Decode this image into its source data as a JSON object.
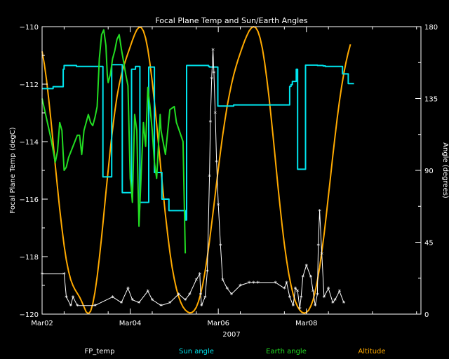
{
  "colors": {
    "background": "#000000",
    "axes": "#ffffff",
    "fp_temp": "#ffffff",
    "sun_angle": "#00e5ee",
    "earth_angle": "#22dd22",
    "altitude": "#ffaa00"
  },
  "chart_data": {
    "type": "line",
    "title": "Focal Plane Temp and Sun/Earth Angles",
    "xlabel": "2007",
    "ylabel_left": "Focal Plane Temp (degC)",
    "ylabel_right": "Angle (degrees)",
    "x_unit": "days after Mar02 2007 00:00",
    "xlim": [
      0,
      8.6
    ],
    "ylim_left": [
      -120,
      -110
    ],
    "ylim_right": [
      0,
      180
    ],
    "x_ticks": [
      {
        "value": 0,
        "label": "Mar02"
      },
      {
        "value": 2,
        "label": "Mar04"
      },
      {
        "value": 4,
        "label": "Mar06"
      },
      {
        "value": 6,
        "label": "Mar08"
      }
    ],
    "y_ticks_left": [
      {
        "value": -110,
        "label": "−110"
      },
      {
        "value": -112,
        "label": "−112"
      },
      {
        "value": -114,
        "label": "−114"
      },
      {
        "value": -116,
        "label": "−116"
      },
      {
        "value": -118,
        "label": "−118"
      },
      {
        "value": -120,
        "label": "−120"
      }
    ],
    "y_ticks_right": [
      {
        "value": 0,
        "label": "0"
      },
      {
        "value": 45,
        "label": "45"
      },
      {
        "value": 90,
        "label": "90"
      },
      {
        "value": 135,
        "label": "135"
      },
      {
        "value": 180,
        "label": "180"
      }
    ],
    "series": [
      {
        "name": "FP_temp",
        "axis": "left",
        "color": "#ffffff",
        "marker": "asterisk",
        "x": [
          0,
          0.5,
          0.55,
          0.65,
          0.7,
          0.8,
          1.2,
          1.6,
          1.8,
          1.95,
          2.05,
          2.2,
          2.4,
          2.5,
          2.7,
          2.9,
          3.1,
          3.25,
          3.35,
          3.5,
          3.58,
          3.6,
          3.62,
          3.7,
          3.75,
          3.8,
          3.82,
          3.85,
          3.88,
          3.9,
          3.93,
          3.96,
          4.0,
          4.05,
          4.1,
          4.2,
          4.3,
          4.5,
          4.7,
          4.8,
          4.9,
          5.3,
          5.5,
          5.55,
          5.62,
          5.7,
          5.75,
          5.8,
          5.85,
          5.88,
          5.92,
          6.0,
          6.1,
          6.15,
          6.2,
          6.25,
          6.27,
          6.3,
          6.35,
          6.4,
          6.5,
          6.6,
          6.65,
          6.75,
          6.85
        ],
        "y": [
          -118.6,
          -118.6,
          -119.4,
          -119.7,
          -119.4,
          -119.7,
          -119.7,
          -119.4,
          -119.6,
          -119.1,
          -119.5,
          -119.6,
          -119.2,
          -119.5,
          -119.7,
          -119.6,
          -119.3,
          -119.5,
          -119.3,
          -118.8,
          -118.6,
          -119.3,
          -119.7,
          -119.4,
          -118.5,
          -115.2,
          -113.3,
          -111.8,
          -110.8,
          -111.6,
          -113.0,
          -114.7,
          -116.2,
          -117.6,
          -118.8,
          -119.1,
          -119.3,
          -119.0,
          -118.9,
          -118.9,
          -118.9,
          -118.9,
          -119.1,
          -118.9,
          -119.4,
          -119.7,
          -119.1,
          -119.2,
          -119.8,
          -119.4,
          -118.7,
          -118.3,
          -118.7,
          -119.2,
          -119.7,
          -119.3,
          -117.6,
          -116.4,
          -117.9,
          -119.4,
          -119.1,
          -119.6,
          -119.5,
          -119.2,
          -119.6
        ]
      },
      {
        "name": "Sun angle",
        "axis": "right",
        "color": "#00e5ee",
        "x": [
          0,
          0.25,
          0.25,
          0.48,
          0.48,
          0.5,
          0.5,
          0.78,
          0.78,
          1.38,
          1.38,
          1.58,
          1.58,
          1.82,
          1.82,
          2.03,
          2.03,
          2.12,
          2.12,
          2.22,
          2.22,
          2.42,
          2.42,
          2.55,
          2.55,
          2.72,
          2.72,
          2.88,
          2.88,
          3.25,
          3.25,
          3.28,
          3.28,
          3.78,
          3.78,
          3.8,
          3.8,
          3.99,
          3.99,
          4.35,
          4.35,
          5.62,
          5.62,
          5.65,
          5.65,
          5.68,
          5.68,
          5.77,
          5.77,
          5.8,
          5.8,
          5.98,
          5.98,
          6.25,
          6.25,
          6.38,
          6.38,
          6.43,
          6.43,
          6.82,
          6.82,
          6.95,
          6.95,
          7.08
        ],
        "y": [
          141.2,
          141.2,
          142.4,
          142.4,
          153.3,
          153.3,
          155.7,
          155.7,
          155.1,
          155.1,
          85.9,
          85.9,
          156.2,
          156.2,
          76.1,
          76.1,
          153.3,
          153.3,
          155.1,
          155.1,
          70.0,
          70.0,
          154.7,
          154.7,
          88.7,
          88.7,
          72.0,
          72.0,
          64.8,
          64.8,
          58.9,
          58.9,
          155.7,
          155.7,
          155.1,
          155.1,
          154.7,
          154.7,
          130.3,
          130.3,
          131.0,
          131.0,
          142.6,
          142.6,
          143.7,
          143.7,
          145.7,
          145.7,
          153.3,
          153.3,
          90.7,
          90.7,
          155.9,
          155.9,
          155.7,
          155.7,
          155.4,
          155.4,
          155.1,
          155.1,
          150.4,
          150.4,
          144.3,
          144.3
        ]
      },
      {
        "name": "Earth angle",
        "axis": "right",
        "color": "#22dd22",
        "x": [
          0,
          0.2,
          0.3,
          0.35,
          0.4,
          0.45,
          0.48,
          0.5,
          0.55,
          0.6,
          0.7,
          0.8,
          0.85,
          0.9,
          0.95,
          1.0,
          1.05,
          1.1,
          1.15,
          1.2,
          1.25,
          1.3,
          1.35,
          1.4,
          1.45,
          1.48,
          1.5,
          1.55,
          1.6,
          1.65,
          1.7,
          1.75,
          1.8,
          1.85,
          1.9,
          1.95,
          2.0,
          2.02,
          2.05,
          2.1,
          2.15,
          2.2,
          2.3,
          2.35,
          2.4,
          2.45,
          2.5,
          2.55,
          2.6,
          2.65,
          2.68,
          2.7,
          2.8,
          2.9,
          3.0,
          3.05,
          3.1,
          3.2,
          3.25
        ],
        "y": [
          135,
          110,
          95,
          102,
          120,
          115,
          100,
          90,
          92,
          98,
          105,
          112,
          112,
          100,
          115,
          120,
          125,
          120,
          118,
          123,
          130,
          160,
          175,
          178,
          168,
          150,
          145,
          150,
          160,
          165,
          172,
          175,
          166,
          158,
          150,
          143,
          85,
          80,
          70,
          125,
          115,
          55,
          120,
          105,
          142,
          130,
          115,
          95,
          85,
          110,
          125,
          115,
          100,
          128,
          130,
          120,
          116,
          108,
          38
        ]
      },
      {
        "name": "Altitude",
        "axis": "right",
        "color": "#ffaa00",
        "x": [
          0,
          0.05,
          0.1,
          0.15,
          0.2,
          0.25,
          0.3,
          0.35,
          0.4,
          0.45,
          0.5,
          0.55,
          0.6,
          0.65,
          0.7,
          0.75,
          0.8,
          0.85,
          0.9,
          0.95,
          1.0,
          1.05,
          1.1,
          1.15,
          1.2,
          1.25,
          1.3,
          1.35,
          1.4,
          1.45,
          1.5,
          1.55,
          1.6,
          1.65,
          1.7,
          1.75,
          1.8,
          1.85,
          1.9,
          1.95,
          2.0,
          2.05,
          2.1,
          2.15,
          2.2,
          2.25,
          2.3,
          2.35,
          2.4,
          2.45,
          2.5,
          2.55,
          2.6,
          2.65,
          2.7,
          2.75,
          2.8,
          2.85,
          2.9,
          2.95,
          3.0,
          3.05,
          3.1,
          3.15,
          3.2,
          3.25,
          3.3,
          3.35,
          3.4,
          3.45,
          3.5,
          3.55,
          3.6,
          3.65,
          3.7,
          3.75,
          3.8,
          3.85,
          3.9,
          3.95,
          4.0,
          4.05,
          4.1,
          4.15,
          4.2,
          4.25,
          4.3,
          4.35,
          4.4,
          4.45,
          4.5,
          4.55,
          4.6,
          4.65,
          4.7,
          4.75,
          4.8,
          4.85,
          4.9,
          4.95,
          5.0,
          5.05,
          5.1,
          5.15,
          5.2,
          5.25,
          5.3,
          5.35,
          5.4,
          5.45,
          5.5,
          5.55,
          5.6,
          5.65,
          5.7,
          5.75,
          5.8,
          5.85,
          5.9,
          5.95,
          6.0,
          6.05,
          6.1,
          6.15,
          6.2,
          6.25,
          6.3,
          6.35,
          6.4,
          6.45,
          6.5,
          6.55,
          6.6,
          6.65,
          6.7,
          6.75,
          6.8,
          6.85,
          6.9,
          6.95,
          7.0
        ],
        "y": [
          164.5,
          156.8,
          146.7,
          134.8,
          121.5,
          107.4,
          93.1,
          79.1,
          65.8,
          53.7,
          43.0,
          34.0,
          26.9,
          21.6,
          17.9,
          15.2,
          13.0,
          10.7,
          7.9,
          4.6,
          1.4,
          0.2,
          1.8,
          6.3,
          13.6,
          23.4,
          35.0,
          48.1,
          62.0,
          76.2,
          90.1,
          103.5,
          115.8,
          126.6,
          136.0,
          143.7,
          149.9,
          155.0,
          159.3,
          163.4,
          167.4,
          171.4,
          175.1,
          178.0,
          179.6,
          179.5,
          177.3,
          172.8,
          165.9,
          156.7,
          145.6,
          132.8,
          118.9,
          104.4,
          89.8,
          75.6,
          62.2,
          49.9,
          39.0,
          29.7,
          22.0,
          15.8,
          10.9,
          7.2,
          4.5,
          2.6,
          1.4,
          0.8,
          1.0,
          2.1,
          4.3,
          7.8,
          12.6,
          19.0,
          26.7,
          35.7,
          45.7,
          56.6,
          68.0,
          79.5,
          90.9,
          101.8,
          112.0,
          121.4,
          129.9,
          137.4,
          144.0,
          149.8,
          154.9,
          159.4,
          163.6,
          167.5,
          171.2,
          174.5,
          177.3,
          179.2,
          180.0,
          179.4,
          177.0,
          172.7,
          166.3,
          157.9,
          147.7,
          136.0,
          123.1,
          109.4,
          95.3,
          81.3,
          67.8,
          55.2,
          43.8,
          33.8,
          25.2,
          18.1,
          12.4,
          8.0,
          4.7,
          2.5,
          1.1,
          0.6,
          1.0,
          2.4,
          5.0,
          8.8,
          14.2,
          21.0,
          29.3,
          39.0,
          49.8,
          61.6,
          74.0,
          86.6,
          99.2,
          111.4,
          122.8,
          133.2,
          142.6,
          150.8,
          157.9,
          163.9,
          168.9
        ]
      }
    ],
    "legend": {
      "placement": "bottom",
      "entries": [
        {
          "label": "FP_temp",
          "color": "#ffffff"
        },
        {
          "label": "Sun angle",
          "color": "#00e5ee"
        },
        {
          "label": "Earth angle",
          "color": "#22dd22"
        },
        {
          "label": "Altitude",
          "color": "#ffaa00"
        }
      ]
    }
  }
}
